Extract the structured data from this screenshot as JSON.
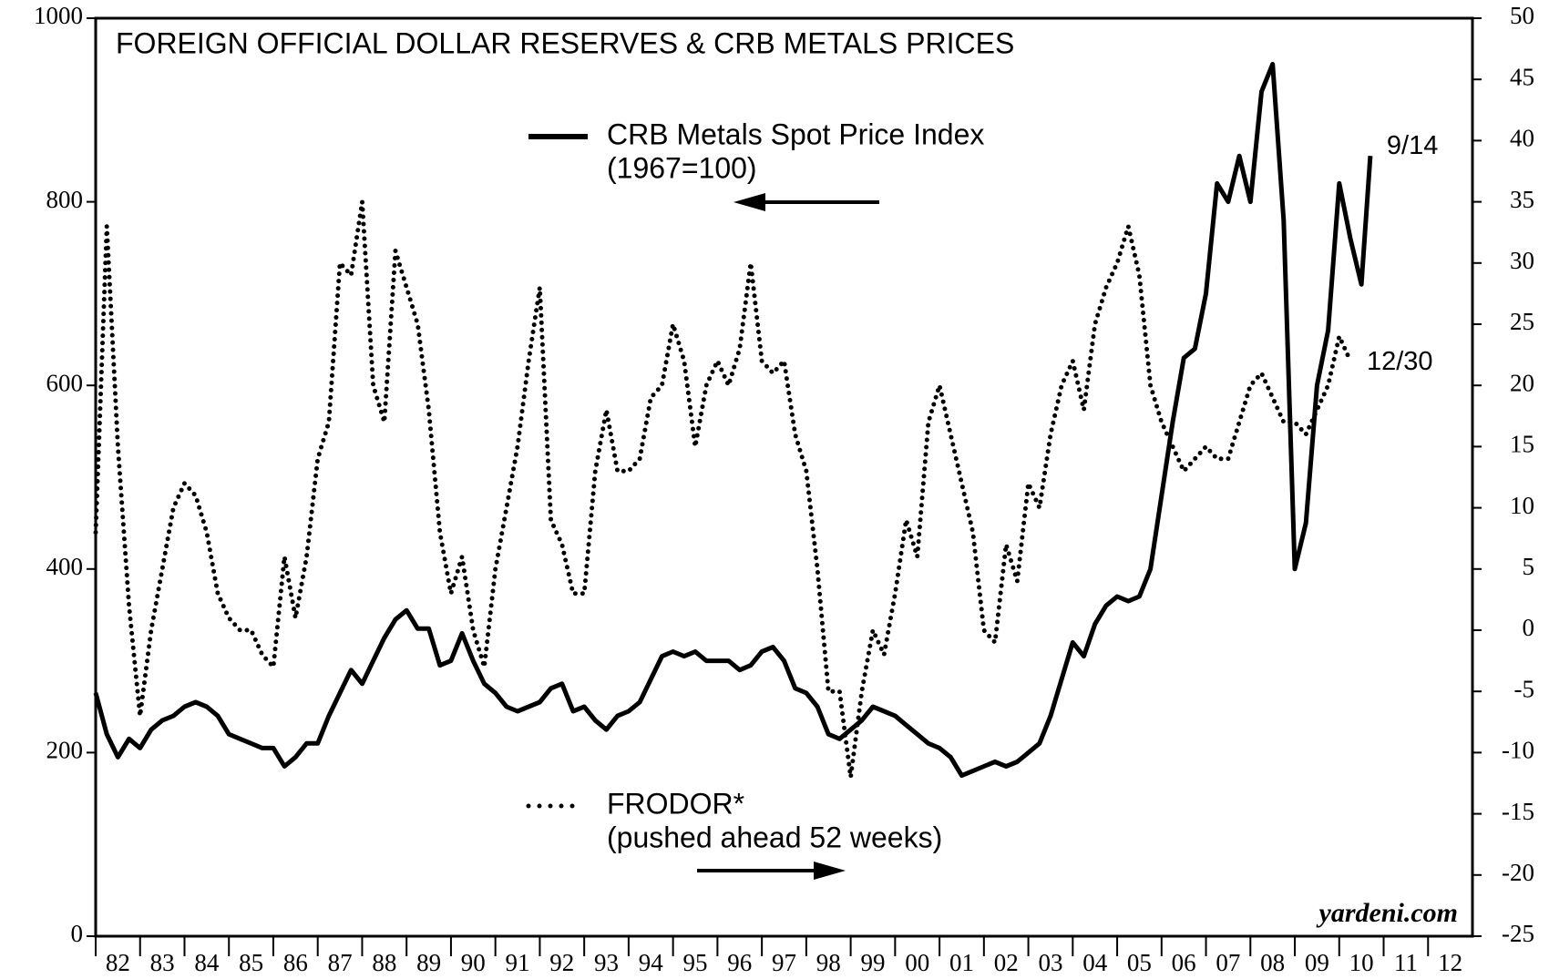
{
  "chart_data": {
    "type": "line",
    "title": "FOREIGN OFFICIAL DOLLAR RESERVES & CRB METALS PRICES",
    "source": "yardeni.com",
    "xlim": [
      1982,
      2013
    ],
    "xticks": [
      {
        "value": 1982,
        "label": "82"
      },
      {
        "value": 1983,
        "label": "83"
      },
      {
        "value": 1984,
        "label": "84"
      },
      {
        "value": 1985,
        "label": "85"
      },
      {
        "value": 1986,
        "label": "86"
      },
      {
        "value": 1987,
        "label": "87"
      },
      {
        "value": 1988,
        "label": "88"
      },
      {
        "value": 1989,
        "label": "89"
      },
      {
        "value": 1990,
        "label": "90"
      },
      {
        "value": 1991,
        "label": "91"
      },
      {
        "value": 1992,
        "label": "92"
      },
      {
        "value": 1993,
        "label": "93"
      },
      {
        "value": 1994,
        "label": "94"
      },
      {
        "value": 1995,
        "label": "95"
      },
      {
        "value": 1996,
        "label": "96"
      },
      {
        "value": 1997,
        "label": "97"
      },
      {
        "value": 1998,
        "label": "98"
      },
      {
        "value": 1999,
        "label": "99"
      },
      {
        "value": 2000,
        "label": "00"
      },
      {
        "value": 2001,
        "label": "01"
      },
      {
        "value": 2002,
        "label": "02"
      },
      {
        "value": 2003,
        "label": "03"
      },
      {
        "value": 2004,
        "label": "04"
      },
      {
        "value": 2005,
        "label": "05"
      },
      {
        "value": 2006,
        "label": "06"
      },
      {
        "value": 2007,
        "label": "07"
      },
      {
        "value": 2008,
        "label": "08"
      },
      {
        "value": 2009,
        "label": "09"
      },
      {
        "value": 2010,
        "label": "10"
      },
      {
        "value": 2011,
        "label": "11"
      },
      {
        "value": 2012,
        "label": "12"
      }
    ],
    "ylim": [
      0,
      1000
    ],
    "yticks": [
      0,
      200,
      400,
      600,
      800,
      1000
    ],
    "y2lim": [
      -25,
      50
    ],
    "y2ticks": [
      -25,
      -20,
      -15,
      -10,
      -5,
      0,
      5,
      10,
      15,
      20,
      25,
      30,
      35,
      40,
      45,
      50
    ],
    "series": [
      {
        "name": "CRB Metals Spot Price Index",
        "note": "(1967=100)",
        "end_label": "9/14",
        "color": "#000000",
        "style": "solid",
        "x": [
          1982,
          1982.25,
          1982.5,
          1982.75,
          1983,
          1983.25,
          1983.5,
          1983.75,
          1984,
          1984.25,
          1984.5,
          1984.75,
          1985,
          1985.25,
          1985.5,
          1985.75,
          1986,
          1986.25,
          1986.5,
          1986.75,
          1987,
          1987.25,
          1987.5,
          1987.75,
          1988,
          1988.25,
          1988.5,
          1988.75,
          1989,
          1989.25,
          1989.5,
          1989.75,
          1990,
          1990.25,
          1990.5,
          1990.75,
          1991,
          1991.25,
          1991.5,
          1991.75,
          1992,
          1992.25,
          1992.5,
          1992.75,
          1993,
          1993.25,
          1993.5,
          1993.75,
          1994,
          1994.25,
          1994.5,
          1994.75,
          1995,
          1995.25,
          1995.5,
          1995.75,
          1996,
          1996.25,
          1996.5,
          1996.75,
          1997,
          1997.25,
          1997.5,
          1997.75,
          1998,
          1998.25,
          1998.5,
          1998.75,
          1999,
          1999.25,
          1999.5,
          1999.75,
          2000,
          2000.25,
          2000.5,
          2000.75,
          2001,
          2001.25,
          2001.5,
          2001.75,
          2002,
          2002.25,
          2002.5,
          2002.75,
          2003,
          2003.25,
          2003.5,
          2003.75,
          2004,
          2004.25,
          2004.5,
          2004.75,
          2005,
          2005.25,
          2005.5,
          2005.75,
          2006,
          2006.25,
          2006.5,
          2006.75,
          2007,
          2007.25,
          2007.5,
          2007.75,
          2008,
          2008.25,
          2008.5,
          2008.75,
          2009,
          2009.25,
          2009.5,
          2009.75,
          2010,
          2010.25,
          2010.5,
          2010.7
        ],
        "values": [
          265,
          220,
          195,
          215,
          205,
          225,
          235,
          240,
          250,
          255,
          250,
          240,
          220,
          215,
          210,
          205,
          205,
          185,
          195,
          210,
          210,
          240,
          265,
          290,
          275,
          300,
          325,
          345,
          355,
          335,
          335,
          295,
          300,
          330,
          300,
          275,
          265,
          250,
          245,
          250,
          255,
          270,
          275,
          245,
          250,
          235,
          225,
          240,
          245,
          255,
          280,
          305,
          310,
          305,
          310,
          300,
          300,
          300,
          290,
          295,
          310,
          315,
          300,
          270,
          265,
          250,
          220,
          215,
          225,
          235,
          250,
          245,
          240,
          230,
          220,
          210,
          205,
          195,
          175,
          180,
          185,
          190,
          185,
          190,
          200,
          210,
          240,
          280,
          320,
          305,
          340,
          360,
          370,
          365,
          370,
          400,
          480,
          560,
          630,
          640,
          700,
          820,
          800,
          850,
          800,
          920,
          950,
          780,
          400,
          450,
          600,
          660,
          820,
          760,
          710,
          850
        ]
      },
      {
        "name": "FRODOR*",
        "note": "(pushed ahead 52 weeks)",
        "end_label": "12/30",
        "color": "#000000",
        "style": "dotted",
        "axis": "y2",
        "x": [
          1982,
          1982.25,
          1982.5,
          1982.75,
          1983,
          1983.25,
          1983.5,
          1983.75,
          1984,
          1984.25,
          1984.5,
          1984.75,
          1985,
          1985.25,
          1985.5,
          1985.75,
          1986,
          1986.25,
          1986.5,
          1986.75,
          1987,
          1987.25,
          1987.5,
          1987.75,
          1988,
          1988.25,
          1988.5,
          1988.75,
          1989,
          1989.25,
          1989.5,
          1989.75,
          1990,
          1990.25,
          1990.5,
          1990.75,
          1991,
          1991.25,
          1991.5,
          1991.75,
          1992,
          1992.25,
          1992.5,
          1992.75,
          1993,
          1993.25,
          1993.5,
          1993.75,
          1994,
          1994.25,
          1994.5,
          1994.75,
          1995,
          1995.25,
          1995.5,
          1995.75,
          1996,
          1996.25,
          1996.5,
          1996.75,
          1997,
          1997.25,
          1997.5,
          1997.75,
          1998,
          1998.25,
          1998.5,
          1998.75,
          1999,
          1999.25,
          1999.5,
          1999.75,
          2000,
          2000.25,
          2000.5,
          2000.75,
          2001,
          2001.25,
          2001.5,
          2001.75,
          2002,
          2002.25,
          2002.5,
          2002.75,
          2003,
          2003.25,
          2003.5,
          2003.75,
          2004,
          2004.25,
          2004.5,
          2004.75,
          2005,
          2005.25,
          2005.5,
          2005.75,
          2006,
          2006.25,
          2006.5,
          2006.75,
          2007,
          2007.25,
          2007.5,
          2007.75,
          2008,
          2008.25,
          2008.5,
          2008.75,
          2009,
          2009.25,
          2009.5,
          2009.75,
          2010,
          2010.25
        ],
        "values": [
          8,
          33,
          15,
          2,
          -7,
          0,
          5,
          10,
          12,
          11,
          8,
          3,
          1,
          0,
          0,
          -2,
          -3,
          6,
          1,
          6,
          14,
          17,
          30,
          29,
          35,
          20,
          17,
          31,
          28,
          25,
          18,
          8,
          3,
          6,
          0,
          -3,
          5,
          10,
          15,
          22,
          28,
          9,
          7,
          3,
          3,
          13,
          18,
          13,
          13,
          14,
          19,
          20,
          25,
          22,
          15,
          20,
          22,
          20,
          23,
          30,
          22,
          21,
          22,
          16,
          13,
          5,
          -5,
          -5,
          -12,
          -5,
          0,
          -2,
          3,
          9,
          6,
          17,
          20,
          16,
          12,
          8,
          0,
          -1,
          7,
          4,
          12,
          10,
          16,
          20,
          22,
          18,
          25,
          28,
          30,
          33,
          29,
          20,
          17,
          15,
          13,
          14,
          15,
          14,
          14,
          17,
          20,
          21,
          19,
          17,
          17,
          16,
          18,
          20,
          24,
          22
        ]
      }
    ]
  }
}
